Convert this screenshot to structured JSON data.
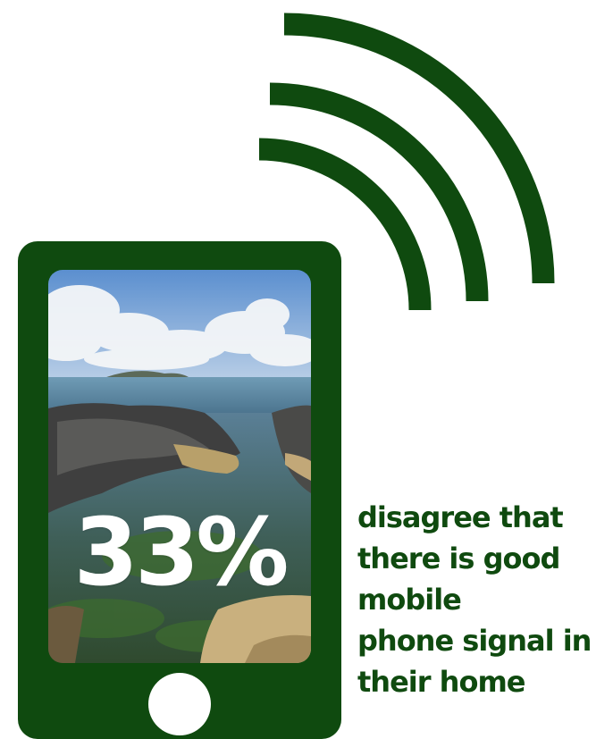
{
  "colors": {
    "brand_green": "#0f4a0f",
    "white": "#ffffff"
  },
  "icons": {
    "signal": "wifi-signal-arcs-icon",
    "phone": "mobile-phone-icon",
    "home_button": "phone-home-button-icon"
  },
  "screen_image": "coastal rock pool scene",
  "statistic": {
    "value": "33%"
  },
  "caption": {
    "lines": [
      "disagree that",
      "there is good",
      "mobile",
      "phone signal in",
      "their home"
    ]
  }
}
